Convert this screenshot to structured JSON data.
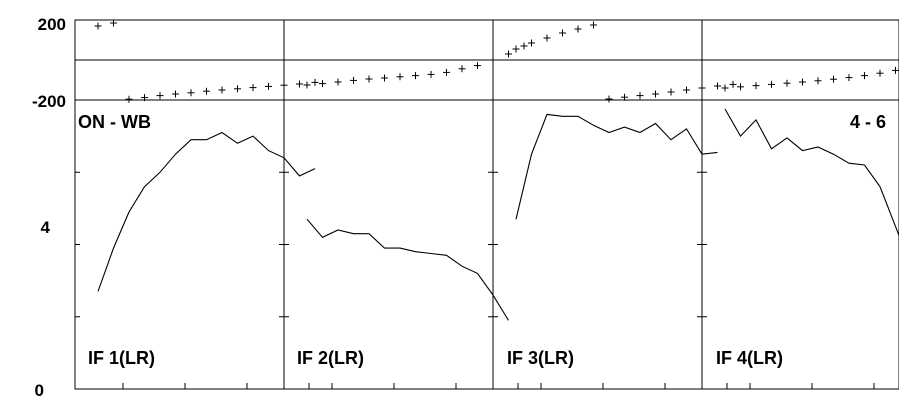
{
  "chart_data": {
    "type": "line",
    "corner_labels": {
      "left": "ON - WB",
      "right": "4 - 6"
    },
    "phase_axis": {
      "ticks": [
        "200",
        "-200"
      ],
      "range": [
        -200,
        200
      ]
    },
    "amp_axis": {
      "ticks": [
        "4",
        "0"
      ],
      "range": [
        0,
        8
      ]
    },
    "x": [
      1,
      2,
      3,
      4,
      5,
      6,
      7,
      8,
      9,
      10,
      11,
      12,
      13,
      14,
      15,
      16
    ],
    "panels": [
      {
        "label": "IF 1(LR)",
        "phase": [
          null,
          170,
          185,
          -196,
          -188,
          -178,
          -170,
          -164,
          -156,
          -150,
          -144,
          -138,
          -132,
          -126,
          -120,
          -112
        ],
        "amplitude": [
          null,
          2.7,
          3.9,
          4.9,
          5.6,
          6.0,
          6.5,
          6.9,
          6.9,
          7.1,
          6.8,
          7.0,
          6.6,
          6.4,
          5.9,
          6.1
        ]
      },
      {
        "label": "IF 2(LR)",
        "phase": [
          null,
          -125,
          -118,
          -110,
          -102,
          -95,
          -90,
          -84,
          -78,
          -72,
          -62,
          -44,
          -28,
          0,
          30,
          70
        ],
        "amplitude": [
          null,
          4.7,
          4.2,
          4.4,
          4.3,
          4.3,
          3.9,
          3.9,
          3.8,
          3.75,
          3.7,
          3.4,
          3.2,
          2.6,
          1.9,
          null
        ]
      },
      {
        "label": "IF 3(LR)",
        "phase": [
          null,
          55,
          85,
          110,
          135,
          155,
          175,
          -195,
          -186,
          -178,
          -170,
          -160,
          -150,
          -140,
          -130,
          -122
        ],
        "amplitude": [
          null,
          4.7,
          6.5,
          7.6,
          7.55,
          7.55,
          7.3,
          7.1,
          7.25,
          7.1,
          7.35,
          6.9,
          7.2,
          6.5,
          6.55,
          null
        ]
      },
      {
        "label": "IF 4(LR)",
        "phase": [
          null,
          -140,
          -134,
          -128,
          -122,
          -116,
          -110,
          -104,
          -96,
          -88,
          -78,
          -66,
          -52,
          -38,
          -22,
          0
        ],
        "amplitude": [
          null,
          7.75,
          7.0,
          7.45,
          6.65,
          6.95,
          6.6,
          6.7,
          6.5,
          6.25,
          6.2,
          5.6,
          4.5,
          3.4,
          2.2,
          null
        ]
      }
    ]
  }
}
